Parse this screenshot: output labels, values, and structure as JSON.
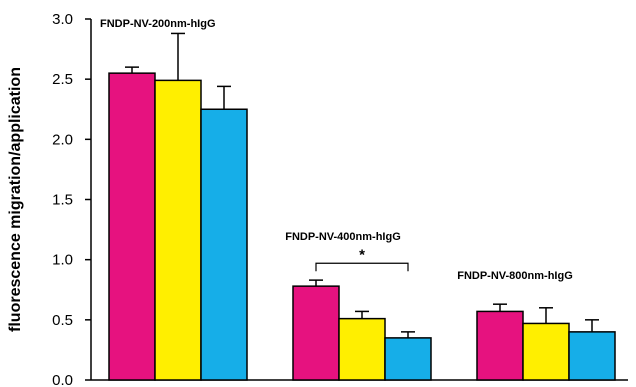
{
  "chart_data": {
    "type": "bar",
    "title": "",
    "xlabel": "",
    "ylabel": "fluorescence migration/application",
    "ylim": [
      0,
      3.0
    ],
    "yticks": [
      "0.0",
      "0.5",
      "1.0",
      "1.5",
      "2.0",
      "2.5",
      "3.0"
    ],
    "grid": false,
    "legend": "none",
    "categories": [
      "FNDP-NV-200nm-hIgG",
      "FNDP-NV-400nm-hIgG",
      "FNDP-NV-800nm-hIgG"
    ],
    "series": [
      {
        "color": "#e6127f",
        "values": [
          2.55,
          0.78,
          0.57
        ],
        "errors": [
          0.05,
          0.05,
          0.06
        ]
      },
      {
        "color": "#ffef00",
        "values": [
          2.49,
          0.51,
          0.47
        ],
        "errors": [
          0.39,
          0.06,
          0.13
        ]
      },
      {
        "color": "#16aee8",
        "values": [
          2.25,
          0.35,
          0.4
        ],
        "errors": [
          0.19,
          0.05,
          0.1
        ]
      }
    ],
    "annotations": [
      {
        "text": "*",
        "category_index": 1,
        "from_series": 0,
        "to_series": 2,
        "y": 0.97
      }
    ]
  }
}
